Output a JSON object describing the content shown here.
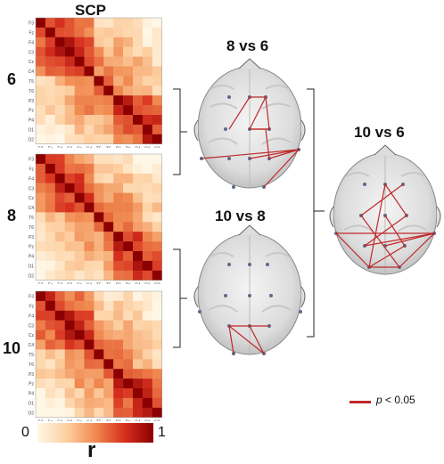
{
  "title": "SCP",
  "rows": [
    {
      "label": "6"
    },
    {
      "label": "8"
    },
    {
      "label": "10"
    }
  ],
  "channels": [
    "F3",
    "Fz",
    "F4",
    "C3",
    "Cz",
    "C4",
    "T5",
    "T6",
    "P3",
    "Pz",
    "P4",
    "O1",
    "O2"
  ],
  "comparisons": {
    "c86": "8 vs 6",
    "c108": "10 vs 8",
    "c106": "10 vs 6"
  },
  "colorbar": {
    "min": "0",
    "max": "1",
    "label": "r",
    "low_color": "#fdf1dc",
    "high_color": "#8b0000"
  },
  "legend": {
    "p": "p",
    "threshold": " < 0.05",
    "color": "#c0282a"
  }
}
